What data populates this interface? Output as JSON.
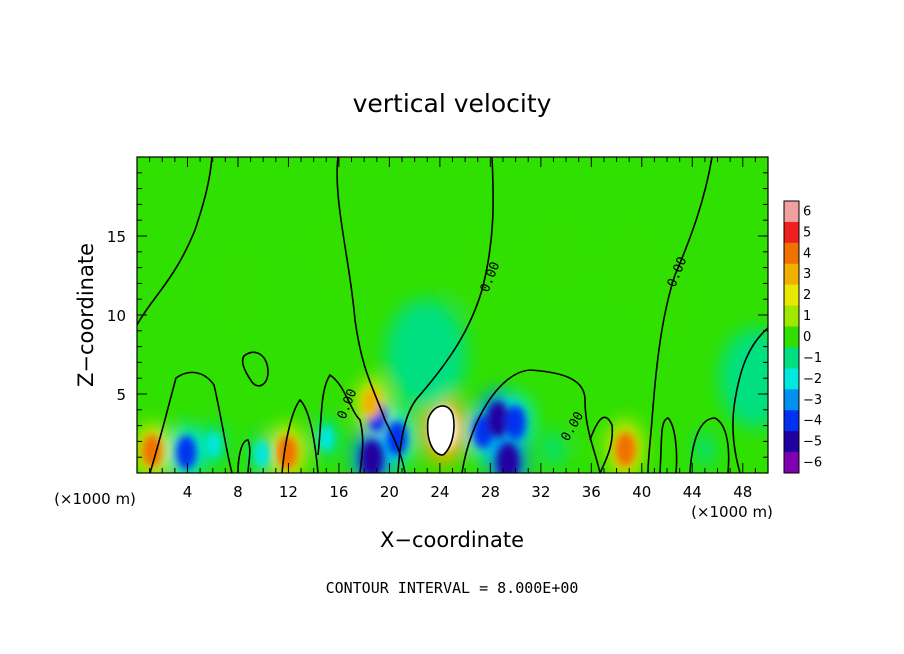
{
  "chart_data": {
    "type": "heatmap",
    "title": "vertical velocity",
    "xlabel": "X−coordinate",
    "ylabel": "Z−coordinate",
    "x_unit_label": "(×1000 m)",
    "z_unit_label": "(×1000 m)",
    "xlim": [
      0,
      50
    ],
    "ylim": [
      0,
      20
    ],
    "x_ticks": [
      4,
      8,
      12,
      16,
      20,
      24,
      28,
      32,
      36,
      40,
      44,
      48
    ],
    "y_ticks": [
      5,
      10,
      15
    ],
    "x_tick_labels": [
      "4",
      "8",
      "12",
      "16",
      "20",
      "24",
      "28",
      "32",
      "36",
      "40",
      "44",
      "48"
    ],
    "y_tick_labels": [
      "5",
      "10",
      "15"
    ],
    "colorbar": {
      "min": -6,
      "max": 6,
      "labels": [
        "6",
        "5",
        "4",
        "3",
        "2",
        "1",
        "0",
        "−1",
        "−2",
        "−3",
        "−4",
        "−5",
        "−6"
      ],
      "colors": [
        "#f0a0a0",
        "#f02020",
        "#f07000",
        "#f0b000",
        "#e8e800",
        "#a0e800",
        "#30e000",
        "#00e080",
        "#00e8e0",
        "#0090f0",
        "#0030f0",
        "#2000a0",
        "#8000b0"
      ]
    },
    "contour_labels": [
      "0.00",
      "0.00",
      "0.00",
      "0.00",
      "0.00"
    ],
    "annotation": "CONTOUR INTERVAL = 8.000E+00",
    "features": [
      {
        "x": 24.3,
        "z": 2.8,
        "value": 6.2
      },
      {
        "x": 19.0,
        "z": 3.6,
        "value": -3.5
      },
      {
        "x": 20.6,
        "z": 2.2,
        "value": -4.2
      },
      {
        "x": 27.4,
        "z": 2.6,
        "value": -3.8
      },
      {
        "x": 28.6,
        "z": 3.4,
        "value": -4.6
      },
      {
        "x": 30.0,
        "z": 3.2,
        "value": -4.2
      },
      {
        "x": 1.2,
        "z": 1.4,
        "value": 3.8
      },
      {
        "x": 11.9,
        "z": 1.3,
        "value": 4.0
      },
      {
        "x": 38.7,
        "z": 1.5,
        "value": 4.2
      },
      {
        "x": 18.6,
        "z": 4.4,
        "value": 3.2
      },
      {
        "x": 3.9,
        "z": 1.3,
        "value": -4.0
      },
      {
        "x": 18.6,
        "z": 0.9,
        "value": -5.0
      },
      {
        "x": 29.4,
        "z": 0.7,
        "value": -5.0
      },
      {
        "x": 9.9,
        "z": 1.2,
        "value": -2.2
      },
      {
        "x": 6.1,
        "z": 1.8,
        "value": -2.0
      },
      {
        "x": 15.0,
        "z": 2.2,
        "value": -2.0
      },
      {
        "x": 22.9,
        "z": 7.5,
        "value": -1.6
      },
      {
        "x": 23.5,
        "z": 5.0,
        "value": -1.2
      },
      {
        "x": 39.2,
        "z": 13.0,
        "value": -0.8
      },
      {
        "x": 42.0,
        "z": 11.0,
        "value": -0.7
      },
      {
        "x": 33.5,
        "z": 13.5,
        "value": -0.5
      },
      {
        "x": 49.0,
        "z": 6.0,
        "value": -1.0
      },
      {
        "x": 16.0,
        "z": 14.0,
        "value": 0.4
      },
      {
        "x": 8.0,
        "z": 12.0,
        "value": 0.3
      },
      {
        "x": 27.0,
        "z": 12.5,
        "value": 0.2
      },
      {
        "x": 45.0,
        "z": 1.5,
        "value": -1.0
      },
      {
        "x": 33.0,
        "z": 1.5,
        "value": -1.2
      },
      {
        "x": 35.5,
        "z": 2.2,
        "value": -0.9
      }
    ]
  }
}
